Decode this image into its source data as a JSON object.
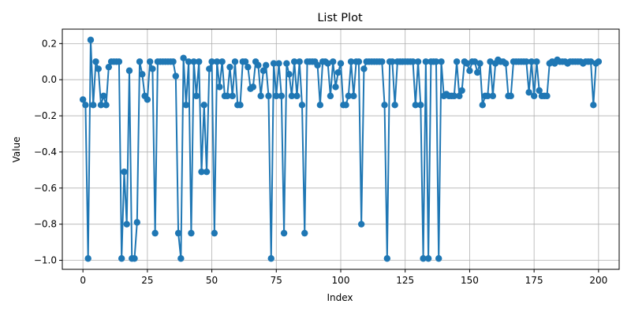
{
  "chart_data": {
    "type": "line",
    "title": "List Plot",
    "xlabel": "Index",
    "ylabel": "Value",
    "xlim": [
      -8,
      208
    ],
    "ylim": [
      -1.05,
      0.28
    ],
    "xticks": [
      0,
      25,
      50,
      75,
      100,
      125,
      150,
      175,
      200
    ],
    "yticks": [
      -1.0,
      -0.8,
      -0.6,
      -0.4,
      -0.2,
      0.0,
      0.2
    ],
    "grid": true,
    "legend": "none",
    "color": "#1f77b4",
    "marker": "circle",
    "series": [
      {
        "values": [
          -0.11,
          -0.14,
          -0.99,
          0.22,
          -0.14,
          0.1,
          0.06,
          -0.14,
          -0.09,
          -0.14,
          0.07,
          0.1,
          0.1,
          0.1,
          0.1,
          -0.99,
          -0.51,
          -0.8,
          0.05,
          -0.99,
          -0.99,
          -0.79,
          0.1,
          0.03,
          -0.09,
          -0.11,
          0.1,
          0.06,
          -0.85,
          0.1,
          0.1,
          0.1,
          0.1,
          0.1,
          0.1,
          0.1,
          0.02,
          -0.85,
          -0.99,
          0.12,
          -0.14,
          0.1,
          -0.85,
          0.1,
          -0.09,
          0.1,
          -0.51,
          -0.14,
          -0.51,
          0.06,
          0.1,
          -0.85,
          0.1,
          -0.04,
          0.1,
          -0.09,
          -0.09,
          0.07,
          -0.09,
          0.1,
          -0.14,
          -0.14,
          0.1,
          0.1,
          0.07,
          -0.05,
          -0.04,
          0.1,
          0.08,
          -0.09,
          0.05,
          0.08,
          -0.09,
          -0.99,
          0.09,
          -0.09,
          0.09,
          -0.09,
          -0.85,
          0.09,
          0.03,
          -0.09,
          0.1,
          -0.09,
          0.1,
          -0.14,
          -0.85,
          0.1,
          0.1,
          0.1,
          0.1,
          0.08,
          -0.14,
          0.1,
          0.1,
          0.09,
          -0.09,
          0.1,
          -0.04,
          0.04,
          0.09,
          -0.14,
          -0.14,
          -0.09,
          0.1,
          -0.09,
          0.1,
          0.1,
          -0.8,
          0.06,
          0.1,
          0.1,
          0.1,
          0.1,
          0.1,
          0.1,
          0.1,
          -0.14,
          -0.99,
          0.1,
          0.1,
          -0.14,
          0.1,
          0.1,
          0.1,
          0.1,
          0.1,
          0.1,
          0.1,
          -0.14,
          0.1,
          -0.14,
          -0.99,
          0.1,
          -0.99,
          0.1,
          0.1,
          0.1,
          -0.99,
          0.1,
          -0.09,
          -0.08,
          -0.09,
          -0.09,
          -0.09,
          0.1,
          -0.09,
          -0.06,
          0.1,
          0.09,
          0.05,
          0.1,
          0.1,
          0.04,
          0.09,
          -0.14,
          -0.09,
          -0.09,
          0.1,
          -0.09,
          0.09,
          0.11,
          0.1,
          0.1,
          0.09,
          -0.09,
          -0.09,
          0.1,
          0.1,
          0.1,
          0.1,
          0.1,
          0.1,
          -0.07,
          0.1,
          -0.09,
          0.1,
          -0.06,
          -0.09,
          -0.09,
          -0.09,
          0.09,
          0.1,
          0.09,
          0.11,
          0.1,
          0.1,
          0.1,
          0.09,
          0.1,
          0.1,
          0.1,
          0.1,
          0.1,
          0.09,
          0.1,
          0.1,
          0.1,
          -0.14,
          0.09,
          0.1
        ]
      }
    ]
  }
}
